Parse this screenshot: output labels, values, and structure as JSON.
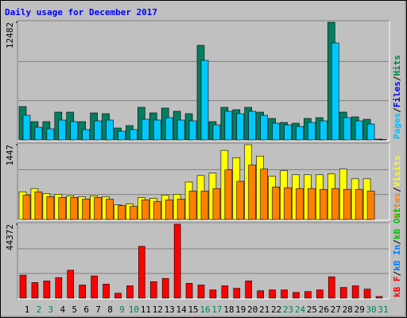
{
  "chart_data": [
    {
      "type": "bar",
      "title": "Daily usage for December 2017",
      "ylim": [
        0,
        12482
      ],
      "yticks": [
        12482
      ],
      "legend": [
        {
          "text": "Pages",
          "color": "#00C0FF"
        },
        {
          "text": "Files",
          "color": "#0000FF"
        },
        {
          "text": "Hits",
          "color": "#008040"
        }
      ],
      "separator": "/",
      "series": [
        {
          "color": "#008060",
          "values": [
            3542,
            1940,
            1940,
            2952,
            2952,
            1940,
            2868,
            2783,
            1265,
            1518,
            3458,
            2868,
            3374,
            3036,
            2783,
            10036,
            1940,
            3458,
            3205,
            3458,
            2952,
            2277,
            1855,
            1771,
            2277,
            2362,
            12482,
            2952,
            2446,
            2193,
            84
          ]
        },
        {
          "color": "#00C8FF",
          "values": [
            2615,
            1349,
            1181,
            2109,
            1940,
            1096,
            2024,
            2109,
            928,
            1096,
            2193,
            2109,
            2362,
            2109,
            2024,
            8434,
            1602,
            3036,
            2783,
            3036,
            2615,
            1771,
            1602,
            1434,
            1855,
            2024,
            10289,
            2362,
            2024,
            1687,
            42
          ]
        }
      ]
    },
    {
      "type": "bar",
      "ylim": [
        0,
        1447
      ],
      "yticks": [
        1447
      ],
      "legend": [
        {
          "text": "Sites",
          "color": "#FF8000"
        },
        {
          "text": "Visits",
          "color": "#FFFF00"
        }
      ],
      "separator": "/",
      "series": [
        {
          "color": "#FFFF00",
          "values": [
            535,
            598,
            503,
            488,
            456,
            440,
            456,
            440,
            283,
            299,
            425,
            409,
            472,
            488,
            724,
            849,
            897,
            1337,
            1195,
            1447,
            1227,
            834,
            944,
            865,
            865,
            865,
            881,
            975,
            787,
            787,
            0
          ]
        },
        {
          "color": "#FF8000",
          "values": [
            472,
            535,
            440,
            425,
            425,
            393,
            425,
            393,
            267,
            252,
            378,
            346,
            378,
            393,
            551,
            551,
            598,
            960,
            739,
            1054,
            975,
            629,
            613,
            598,
            598,
            582,
            598,
            582,
            582,
            551,
            0
          ]
        }
      ]
    },
    {
      "type": "bar",
      "ylim": [
        0,
        44372
      ],
      "yticks": [
        44372
      ],
      "legend": [
        {
          "text": "kB F",
          "color": "#FF0000"
        },
        {
          "text": "kB In",
          "color": "#0080FF"
        },
        {
          "text": "kB Out",
          "color": "#00C000"
        }
      ],
      "separator": "/",
      "categories": [
        "1",
        "2",
        "3",
        "4",
        "5",
        "6",
        "7",
        "8",
        "9",
        "10",
        "11",
        "12",
        "13",
        "14",
        "15",
        "16",
        "17",
        "18",
        "19",
        "20",
        "21",
        "22",
        "23",
        "24",
        "25",
        "26",
        "27",
        "28",
        "29",
        "30",
        "31"
      ],
      "category_colors": [
        "#000",
        "#00805C",
        "#00805C",
        "#000",
        "#000",
        "#000",
        "#000",
        "#000",
        "#00805C",
        "#00805C",
        "#000",
        "#000",
        "#000",
        "#000",
        "#000",
        "#00805C",
        "#00805C",
        "#000",
        "#000",
        "#000",
        "#000",
        "#000",
        "#00805C",
        "#00805C",
        "#000",
        "#000",
        "#000",
        "#000",
        "#000",
        "#00805C",
        "#00805C"
      ],
      "series": [
        {
          "color": "#FF0000",
          "values": [
            13804,
            9367,
            10353,
            12325,
            16762,
            7888,
            13311,
            8381,
            2958,
            7395,
            31059,
            9860,
            11832,
            44372,
            8874,
            7888,
            4930,
            7395,
            5916,
            10353,
            4437,
            4930,
            4930,
            3451,
            3944,
            4930,
            12818,
            6409,
            7395,
            5423,
            986
          ]
        }
      ]
    }
  ]
}
